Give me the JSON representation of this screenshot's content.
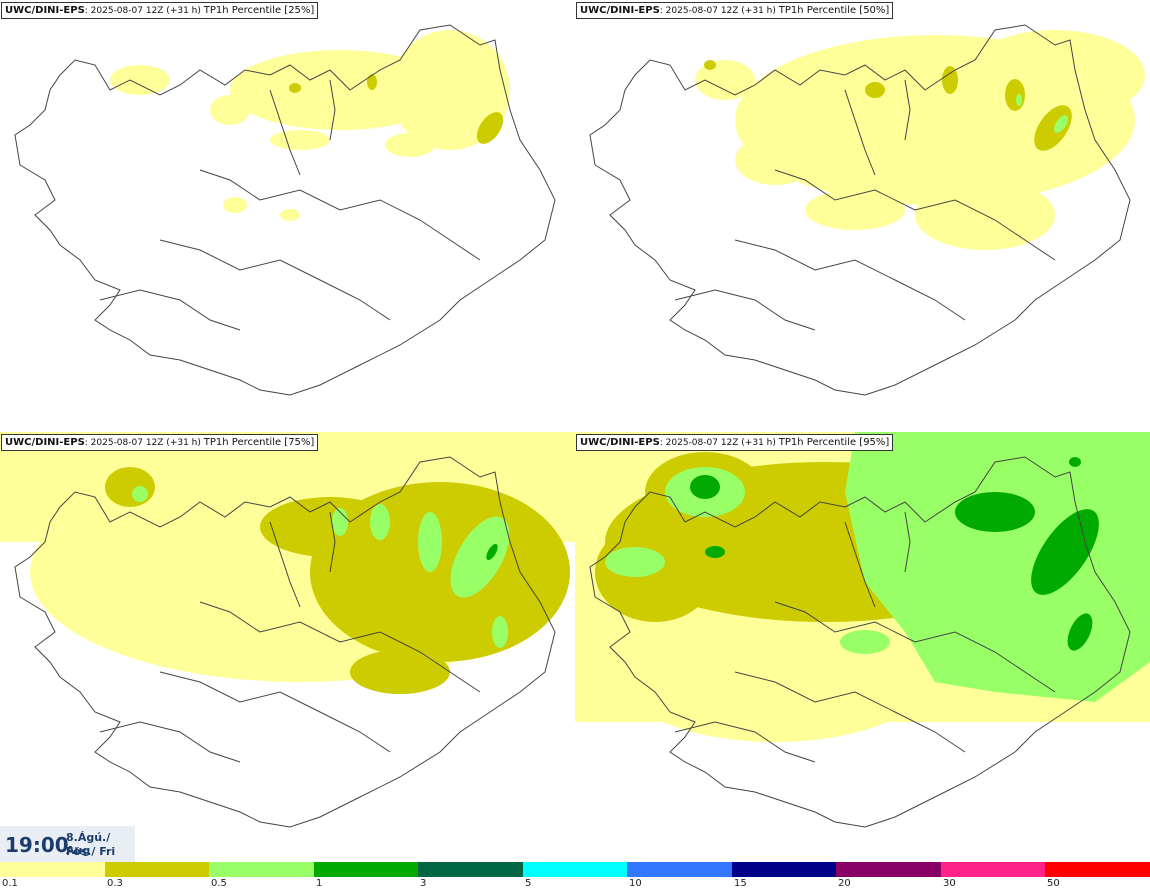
{
  "panels": [
    {
      "model": "UWC/DINI-EPS",
      "info": ": 2025-08-07 12Z (+31 h)",
      "label": "TP1h Percentile [25%]"
    },
    {
      "model": "UWC/DINI-EPS",
      "info": ": 2025-08-07 12Z (+31 h)",
      "label": "TP1h Percentile [50%]"
    },
    {
      "model": "UWC/DINI-EPS",
      "info": ": 2025-08-07 12Z (+31 h)",
      "label": "TP1h Percentile [75%]"
    },
    {
      "model": "UWC/DINI-EPS",
      "info": ": 2025-08-07 12Z (+31 h)",
      "label": "TP1h Percentile [95%]"
    }
  ],
  "valid_time": {
    "clock": "19:00",
    "date_line": "8.Ágú./ Aug",
    "day_line": "Fös./ Fri"
  },
  "legend": {
    "labels": [
      "0.1",
      "0.3",
      "0.5",
      "1",
      "3",
      "5",
      "10",
      "15",
      "20",
      "30",
      "50"
    ],
    "colors": [
      "#ffff99",
      "#cccc00",
      "#99ff66",
      "#00aa00",
      "#006644",
      "#00ffff",
      "#3377ff",
      "#000088",
      "#880066",
      "#ff2288",
      "#ff0000"
    ]
  },
  "map_colors": {
    "light": "#ffff99",
    "olive": "#cccc00",
    "lightgreen": "#99ff66",
    "green": "#00aa00",
    "outline": "#444444"
  }
}
